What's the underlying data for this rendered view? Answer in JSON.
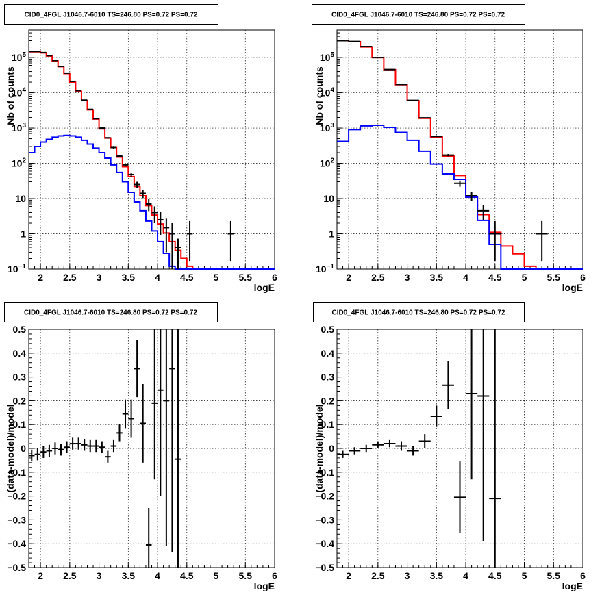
{
  "chart_data": [
    {
      "type": "line",
      "panel": "top-left",
      "title": "CID0_4FGL J1046.7-6010 TS=246.80 PS=0.72 PS=0.72",
      "xlabel": "logE",
      "ylabel": "Nb of counts",
      "xlim": [
        1.8,
        6.0
      ],
      "ylim": [
        0.1,
        600000
      ],
      "ylog": true,
      "grid": true,
      "xticks": [
        "2",
        "2.5",
        "3",
        "3.5",
        "4",
        "4.5",
        "5",
        "5.5",
        "6"
      ],
      "yticks": [
        {
          "v": 0.1,
          "label": "10",
          "sup": "−1"
        },
        {
          "v": 1,
          "label": "1",
          "sup": ""
        },
        {
          "v": 10,
          "label": "10",
          "sup": ""
        },
        {
          "v": 100,
          "label": "10",
          "sup": "2"
        },
        {
          "v": 1000,
          "label": "10",
          "sup": "3"
        },
        {
          "v": 10000,
          "label": "10",
          "sup": "4"
        },
        {
          "v": 100000,
          "label": "10",
          "sup": "5"
        }
      ],
      "series": [
        {
          "color": "#ff0000",
          "kind": "step",
          "bin_width": 0.1,
          "x": [
            1.8,
            1.9,
            2.0,
            2.1,
            2.2,
            2.3,
            2.4,
            2.5,
            2.6,
            2.7,
            2.8,
            2.9,
            3.0,
            3.1,
            3.2,
            3.3,
            3.4,
            3.5,
            3.6,
            3.7,
            3.8,
            3.9,
            4.0,
            4.1,
            4.2,
            4.3,
            4.4,
            4.5,
            4.6,
            4.7,
            4.8,
            4.9,
            5.0,
            5.1,
            5.2,
            5.3,
            5.4,
            5.5,
            5.6,
            5.7,
            5.8,
            5.9
          ],
          "values": [
            145000,
            145000,
            135000,
            110000,
            80000,
            55000,
            35000,
            20000,
            11000,
            6000,
            3300,
            1800,
            950,
            520,
            280,
            150,
            80,
            42,
            22,
            12,
            6.3,
            3.4,
            1.9,
            1.05,
            0.6,
            0.34,
            0.2,
            0.12,
            0.1,
            0.1,
            0.1,
            0.1,
            0.1,
            0.1,
            0.1,
            0.1,
            0.1,
            0.1,
            0.1,
            0.1,
            0.1,
            0.1
          ]
        },
        {
          "color": "#0000ff",
          "kind": "step",
          "bin_width": 0.1,
          "x": [
            1.8,
            1.9,
            2.0,
            2.1,
            2.2,
            2.3,
            2.4,
            2.5,
            2.6,
            2.7,
            2.8,
            2.9,
            3.0,
            3.1,
            3.2,
            3.3,
            3.4,
            3.5,
            3.6,
            3.7,
            3.8,
            3.9,
            4.0,
            4.1,
            4.2,
            4.3,
            4.4,
            4.5,
            4.6,
            4.7,
            4.8,
            4.9,
            5.0,
            5.1,
            5.2,
            5.3,
            5.4,
            5.5,
            5.6,
            5.7,
            5.8,
            5.9
          ],
          "values": [
            200,
            300,
            400,
            480,
            550,
            600,
            620,
            600,
            550,
            450,
            350,
            270,
            200,
            140,
            90,
            55,
            30,
            15,
            8,
            4.5,
            2.3,
            1.2,
            0.6,
            0.28,
            0.12,
            0.1,
            0.1,
            0.1,
            0.1,
            0.1,
            0.1,
            0.1,
            0.1,
            0.1,
            0.1,
            0.1,
            0.1,
            0.1,
            0.1,
            0.1,
            0.1,
            0.1
          ]
        }
      ],
      "points": {
        "color": "#000000",
        "x": [
          1.85,
          1.95,
          2.05,
          2.15,
          2.25,
          2.35,
          2.45,
          2.55,
          2.65,
          2.75,
          2.85,
          2.95,
          3.05,
          3.15,
          3.25,
          3.35,
          3.45,
          3.55,
          3.65,
          3.75,
          3.85,
          3.95,
          4.05,
          4.15,
          4.25,
          4.35,
          4.55,
          5.25
        ],
        "y": [
          148000,
          148000,
          138000,
          113000,
          82000,
          56000,
          36000,
          21000,
          11500,
          6200,
          3400,
          1850,
          1000,
          530,
          280,
          160,
          90,
          48,
          25,
          14,
          7,
          4,
          2.5,
          1.5,
          1.0,
          0.4,
          1.0,
          1.0
        ],
        "yerr_lo": [
          400,
          400,
          370,
          340,
          290,
          240,
          190,
          145,
          107,
          79,
          58,
          43,
          32,
          23,
          17,
          12,
          9,
          6.9,
          5,
          3.7,
          2.6,
          2,
          1.6,
          1.2,
          1,
          0.33,
          0.83,
          0.83
        ],
        "yerr_hi": [
          400,
          400,
          370,
          340,
          290,
          240,
          190,
          145,
          107,
          79,
          58,
          43,
          32,
          23,
          17,
          12,
          9,
          6.9,
          5,
          3.7,
          2.6,
          2,
          1.6,
          1.2,
          1,
          0.33,
          1.3,
          1.3
        ],
        "xerr": 0.05
      }
    },
    {
      "type": "line",
      "panel": "top-right",
      "title": "CID0_4FGL J1046.7-6010 TS=246.80 PS=0.72 PS=0.72",
      "xlabel": "logE",
      "ylabel": "Nb of counts",
      "xlim": [
        1.8,
        6.0
      ],
      "ylim": [
        0.1,
        600000
      ],
      "ylog": true,
      "grid": true,
      "xticks": [
        "2",
        "2.5",
        "3",
        "3.5",
        "4",
        "4.5",
        "5",
        "5.5",
        "6"
      ],
      "yticks": [
        {
          "v": 0.1,
          "label": "10",
          "sup": "−1"
        },
        {
          "v": 1,
          "label": "1",
          "sup": ""
        },
        {
          "v": 10,
          "label": "10",
          "sup": ""
        },
        {
          "v": 100,
          "label": "10",
          "sup": "2"
        },
        {
          "v": 1000,
          "label": "10",
          "sup": "3"
        },
        {
          "v": 10000,
          "label": "10",
          "sup": "4"
        },
        {
          "v": 100000,
          "label": "10",
          "sup": "5"
        }
      ],
      "series": [
        {
          "color": "#ff0000",
          "kind": "step",
          "bin_width": 0.2,
          "x": [
            1.8,
            2.0,
            2.2,
            2.4,
            2.6,
            2.8,
            3.0,
            3.2,
            3.4,
            3.6,
            3.8,
            4.0,
            4.2,
            4.4,
            4.6,
            4.8,
            5.0,
            5.2,
            5.4,
            5.6,
            5.8
          ],
          "values": [
            300000,
            280000,
            200000,
            100000,
            45000,
            17000,
            6000,
            1900,
            560,
            160,
            45,
            11,
            3.5,
            1.1,
            0.45,
            0.27,
            0.12,
            0.1,
            0.1,
            0.1,
            0.1
          ]
        },
        {
          "color": "#0000ff",
          "kind": "step",
          "bin_width": 0.2,
          "x": [
            1.8,
            2.0,
            2.2,
            2.4,
            2.6,
            2.8,
            3.0,
            3.2,
            3.4,
            3.6,
            3.8,
            4.0,
            4.2,
            4.4,
            4.6,
            4.8,
            5.0,
            5.2,
            5.4,
            5.6,
            5.8
          ],
          "values": [
            420,
            900,
            1150,
            1200,
            1050,
            750,
            450,
            220,
            95,
            50,
            35,
            11,
            2.4,
            0.5,
            0.1,
            0.1,
            0.1,
            0.1,
            0.1,
            0.1,
            0.1
          ]
        }
      ],
      "points": {
        "color": "#000000",
        "x": [
          1.9,
          2.1,
          2.3,
          2.5,
          2.7,
          2.9,
          3.1,
          3.3,
          3.5,
          3.7,
          3.9,
          4.1,
          4.3,
          4.5,
          5.3
        ],
        "y": [
          300000,
          285000,
          205000,
          100000,
          45500,
          17200,
          6100,
          1950,
          580,
          170,
          27,
          12,
          4.5,
          1.0,
          1.0
        ],
        "yerr_lo": [
          550,
          530,
          450,
          320,
          210,
          130,
          78,
          44,
          24,
          13,
          5.2,
          3.5,
          2.1,
          0.83,
          0.83
        ],
        "yerr_hi": [
          550,
          530,
          450,
          320,
          210,
          130,
          78,
          44,
          24,
          13,
          5.2,
          3.5,
          2.1,
          1.3,
          1.3
        ],
        "xerr": 0.1
      }
    },
    {
      "type": "scatter",
      "panel": "bottom-left",
      "title": "CID0_4FGL J1046.7-6010 TS=246.80 PS=0.72 PS=0.72",
      "xlabel": "logE",
      "ylabel": "(data-model)/model",
      "xlim": [
        1.8,
        6.0
      ],
      "ylim": [
        -0.5,
        0.5
      ],
      "ylog": false,
      "grid": true,
      "xticks": [
        "2",
        "2.5",
        "3",
        "3.5",
        "4",
        "4.5",
        "5",
        "5.5",
        "6"
      ],
      "yticks": [
        "−0.5",
        "−0.4",
        "−0.3",
        "−0.2",
        "−0.1",
        "0",
        "0.1",
        "0.2",
        "0.3",
        "0.4",
        "0.5"
      ],
      "points": {
        "color": "#000000",
        "x": [
          1.85,
          1.95,
          2.05,
          2.15,
          2.25,
          2.35,
          2.45,
          2.55,
          2.65,
          2.75,
          2.85,
          2.95,
          3.05,
          3.15,
          3.25,
          3.35,
          3.45,
          3.55,
          3.65,
          3.75,
          3.85,
          3.95,
          4.05,
          4.15,
          4.25,
          4.35
        ],
        "y": [
          -0.03,
          -0.025,
          -0.015,
          -0.01,
          0.0,
          -0.005,
          0.005,
          0.02,
          0.02,
          0.015,
          0.01,
          0.01,
          0.005,
          -0.035,
          0.01,
          0.065,
          0.145,
          0.125,
          0.335,
          0.105,
          -0.405,
          0.19,
          0.245,
          0.2,
          0.335,
          -0.045
        ],
        "yerr": [
          0.025,
          0.025,
          0.025,
          0.025,
          0.025,
          0.025,
          0.025,
          0.025,
          0.025,
          0.025,
          0.025,
          0.025,
          0.025,
          0.025,
          0.025,
          0.035,
          0.06,
          0.08,
          0.12,
          0.165,
          0.155,
          0.32,
          0.445,
          0.61,
          0.77,
          0.8
        ],
        "xerr": 0.05
      }
    },
    {
      "type": "scatter",
      "panel": "bottom-right",
      "title": "CID0_4FGL J1046.7-6010 TS=246.80 PS=0.72 PS=0.72",
      "xlabel": "logE",
      "ylabel": "(data-model)/model",
      "xlim": [
        1.8,
        6.0
      ],
      "ylim": [
        -0.5,
        0.5
      ],
      "ylog": false,
      "grid": true,
      "xticks": [
        "2",
        "2.5",
        "3",
        "3.5",
        "4",
        "4.5",
        "5",
        "5.5",
        "6"
      ],
      "yticks": [
        "−0.5",
        "−0.4",
        "−0.3",
        "−0.2",
        "−0.1",
        "0",
        "0.1",
        "0.2",
        "0.3",
        "0.4",
        "0.5"
      ],
      "points": {
        "color": "#000000",
        "x": [
          1.9,
          2.1,
          2.3,
          2.5,
          2.7,
          2.9,
          3.1,
          3.3,
          3.5,
          3.7,
          3.9,
          4.1,
          4.3,
          4.5
        ],
        "y": [
          -0.025,
          -0.01,
          0.0,
          0.015,
          0.02,
          0.01,
          -0.01,
          0.03,
          0.135,
          0.265,
          -0.205,
          0.23,
          0.22,
          -0.21
        ],
        "yerr": [
          0.015,
          0.015,
          0.015,
          0.015,
          0.015,
          0.02,
          0.02,
          0.03,
          0.045,
          0.1,
          0.15,
          0.36,
          0.61,
          0.9
        ],
        "xerr": 0.1
      }
    }
  ]
}
